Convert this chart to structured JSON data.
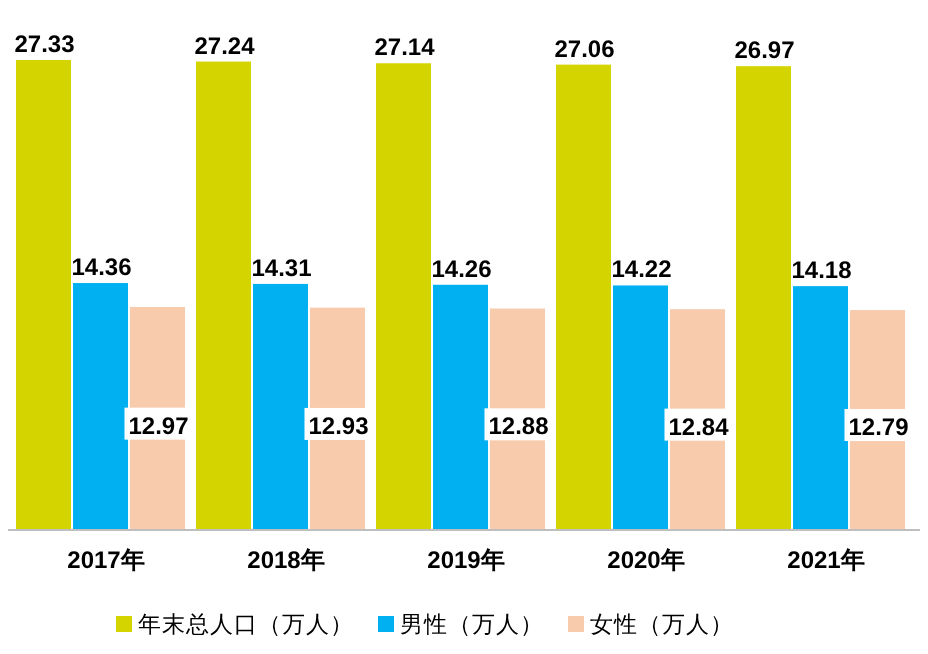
{
  "chart_data": {
    "type": "bar",
    "categories": [
      "2017年",
      "2018年",
      "2019年",
      "2020年",
      "2021年"
    ],
    "series": [
      {
        "name": "年末总人口（万人）",
        "color": "#d4d400",
        "values": [
          27.33,
          27.24,
          27.14,
          27.06,
          26.97
        ]
      },
      {
        "name": "男性（万人）",
        "color": "#00b0f0",
        "values": [
          14.36,
          14.31,
          14.26,
          14.22,
          14.18
        ]
      },
      {
        "name": "女性（万人）",
        "color": "#f8cbad",
        "values": [
          12.97,
          12.93,
          12.88,
          12.84,
          12.79
        ]
      }
    ],
    "data_labels": true,
    "legend": "bottom"
  }
}
